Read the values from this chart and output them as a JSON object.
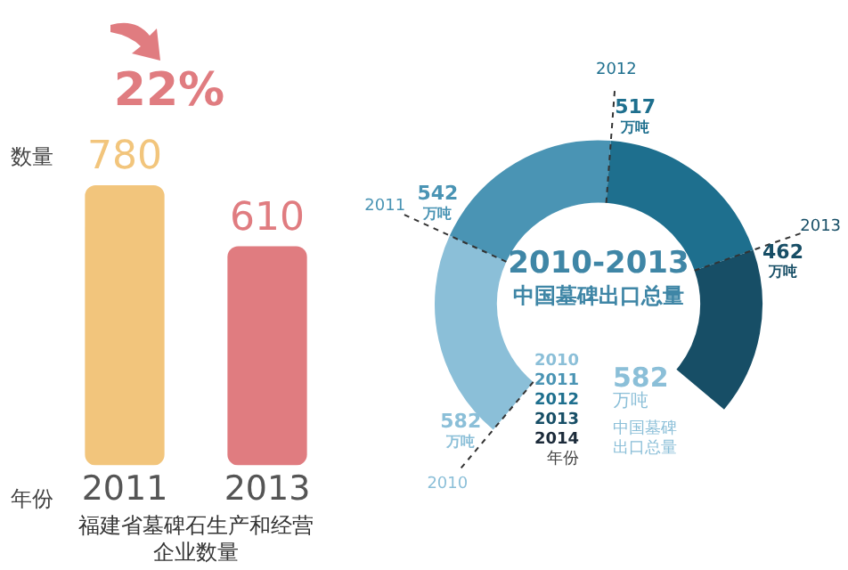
{
  "chart_data": [
    {
      "type": "bar",
      "xlabel": "福建省墓碑石生产和经营企业数量",
      "categories": [
        "2011",
        "2013"
      ],
      "values": [
        780,
        610
      ],
      "colors": [
        "#f2c57c",
        "#e07c80"
      ],
      "data_labels": true,
      "legend": false,
      "grid": false,
      "annotations": [
        "22%",
        "数量",
        "年份"
      ]
    },
    {
      "type": "donut",
      "title": "2010-2013",
      "subtitle": "中国墓碑出口总量",
      "legend_title": "年份",
      "categories": [
        "2010",
        "2011",
        "2012",
        "2013",
        "2014"
      ],
      "values": [
        582,
        542,
        517,
        462,
        null
      ],
      "colors": [
        "#8bbfd8",
        "#4a94b4",
        "#1e6f8e",
        "#174e66",
        "#1c2b3a"
      ],
      "value_labels": [
        "582 万吨",
        "542 万吨",
        "517 万吨",
        "462 万吨",
        null
      ],
      "annotations": [
        "582 万吨",
        "中国墓碑出口总量"
      ]
    }
  ]
}
